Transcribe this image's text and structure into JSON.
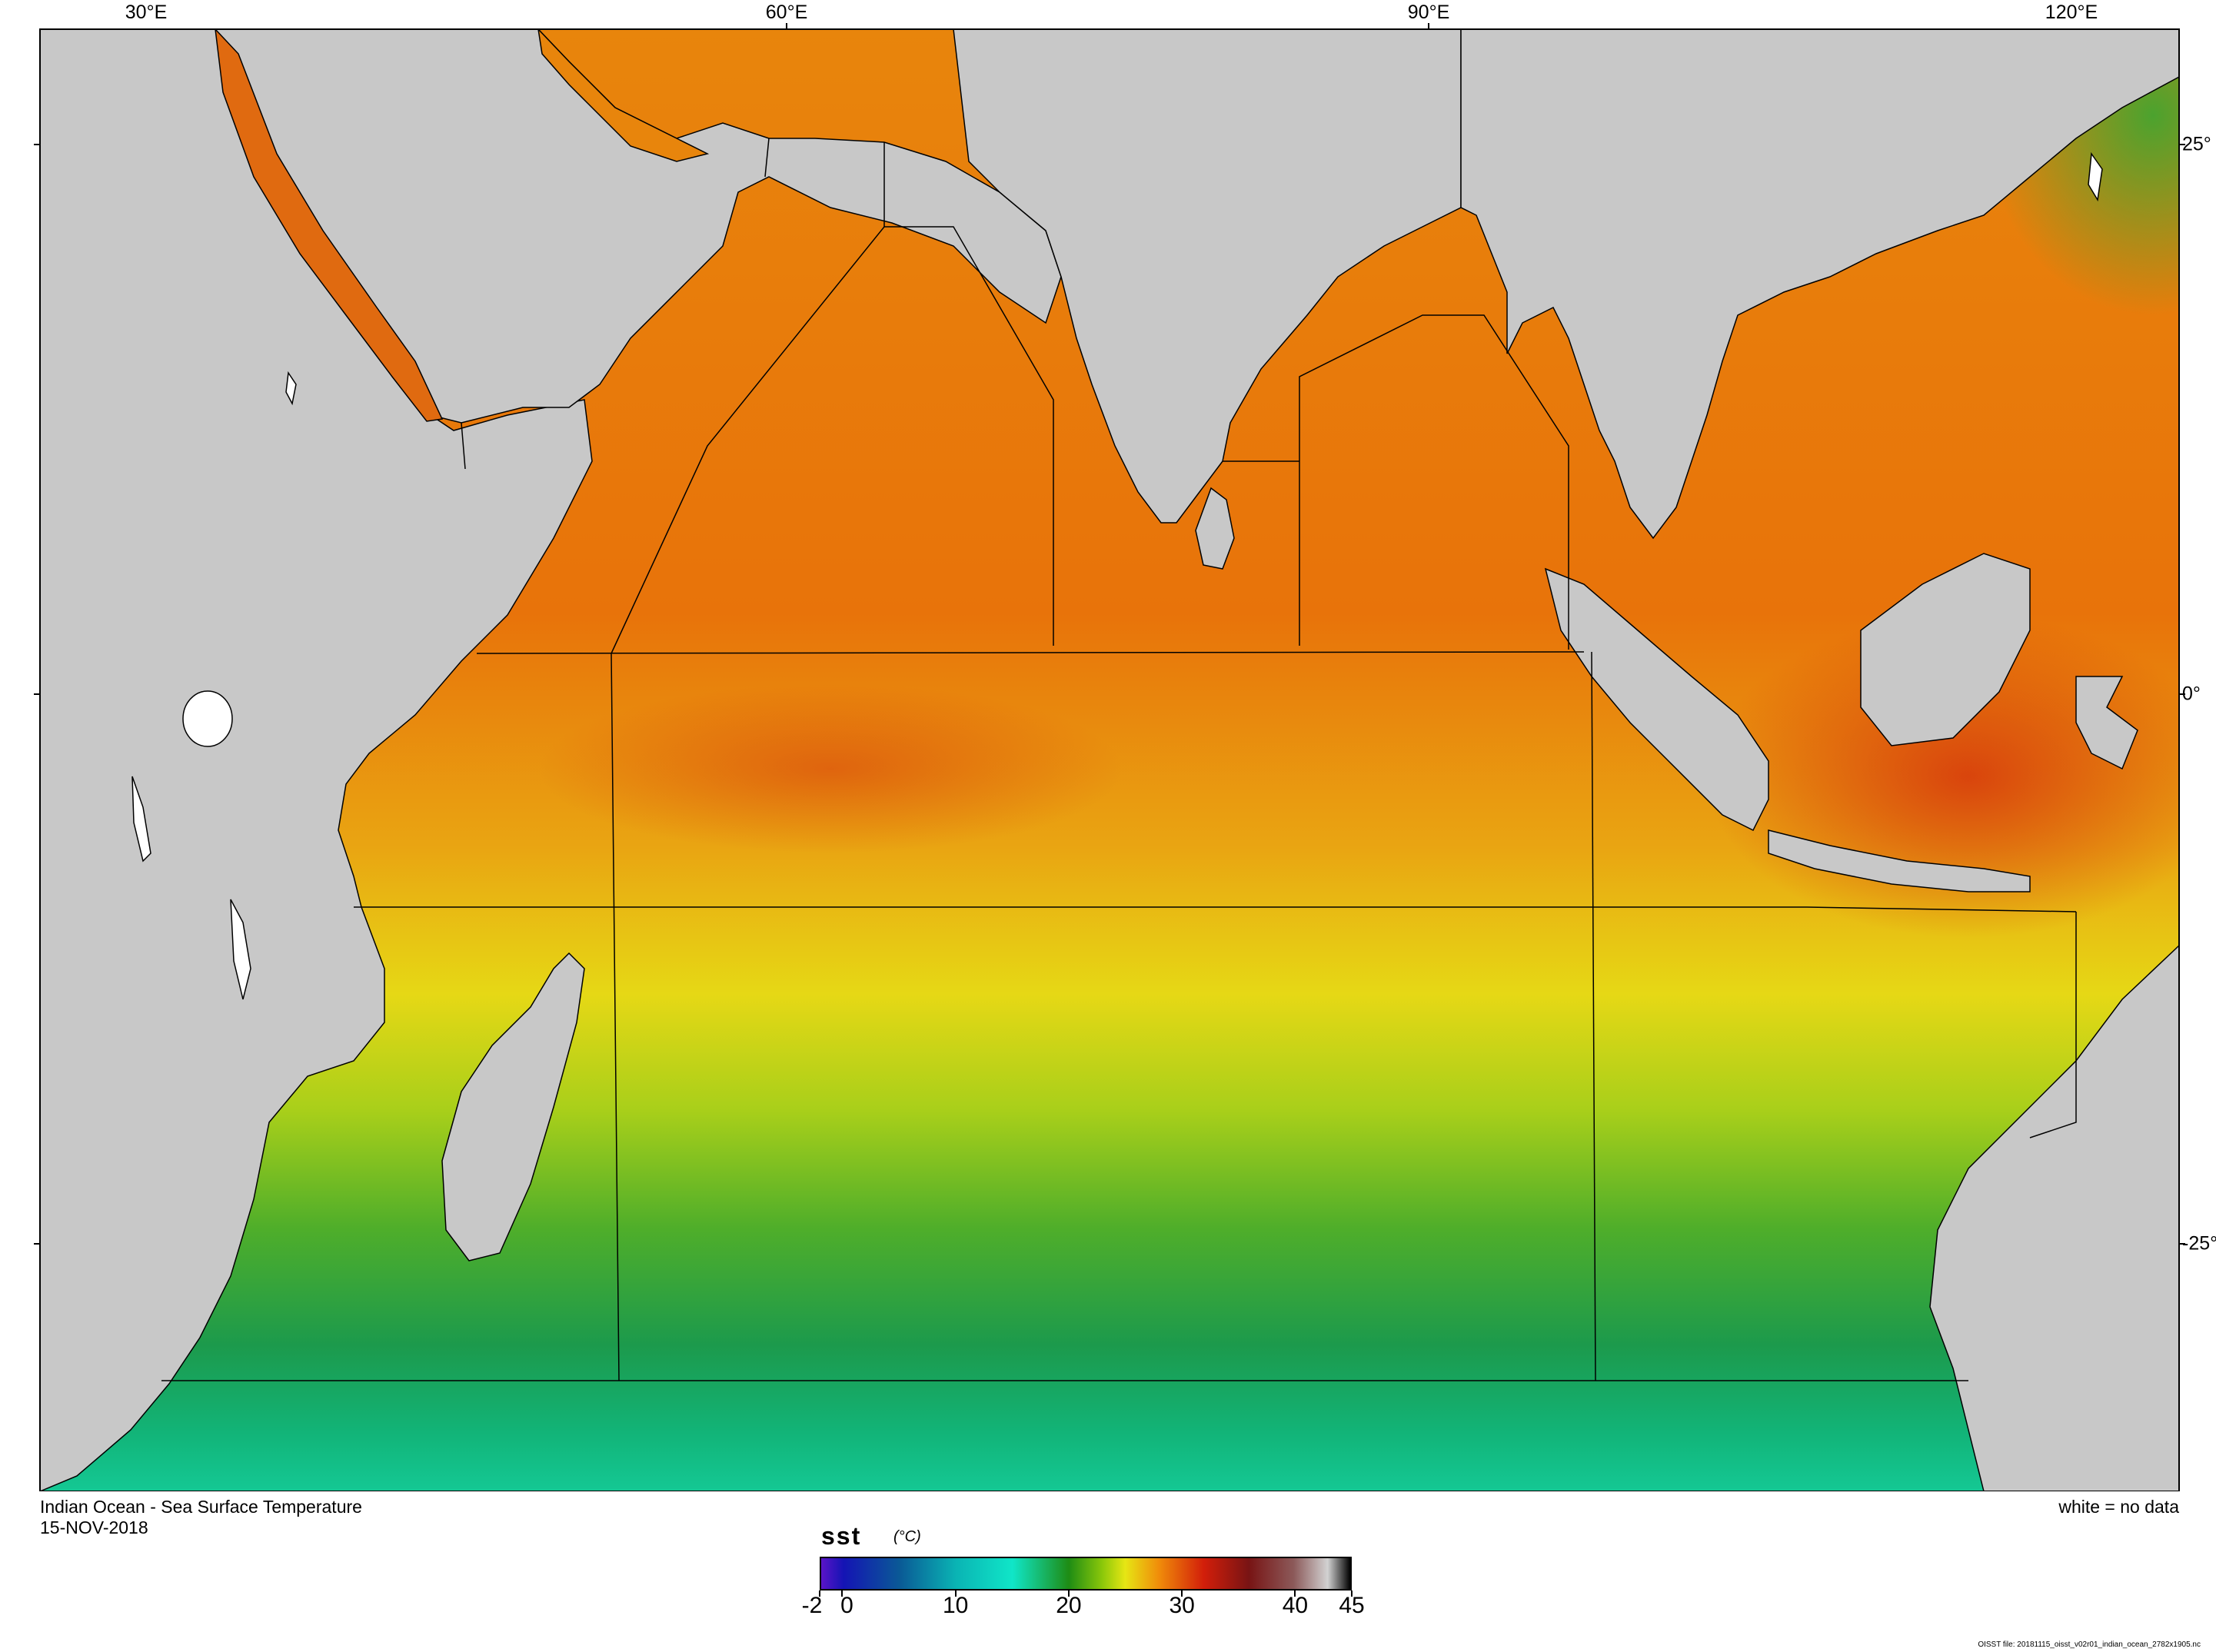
{
  "map": {
    "title": "Indian Ocean - Sea Surface Temperature",
    "date": "15-NOV-2018",
    "no_data_note": "white = no data",
    "footer": "OISST file: 20181115_oisst_v02r01_indian_ocean_2782x1905.nc",
    "lon_labels": [
      "30°E",
      "60°E",
      "90°E",
      "120°E"
    ],
    "lat_labels": [
      "25°",
      "0°",
      "-25°"
    ],
    "colors": {
      "land": "#c8c8c8",
      "no_data": "#ffffff",
      "grid_line": "#000000",
      "warm": "#e8730a",
      "hot": "#d83a10",
      "mild": "#e8d415",
      "cool": "#3aa632",
      "cold": "#10c890"
    }
  },
  "colorbar": {
    "variable": "sst",
    "units": "(°C)",
    "tick_labels": [
      "-2",
      "0",
      "10",
      "20",
      "30",
      "40",
      "45"
    ],
    "range": [
      -2,
      45
    ],
    "stops": [
      {
        "value": -2,
        "color": "#5a14c8"
      },
      {
        "value": 0,
        "color": "#1414b4"
      },
      {
        "value": 5,
        "color": "#0a5a96"
      },
      {
        "value": 10,
        "color": "#0ab4b4"
      },
      {
        "value": 15,
        "color": "#10e6c8"
      },
      {
        "value": 20,
        "color": "#1e8c14"
      },
      {
        "value": 23,
        "color": "#8cc80a"
      },
      {
        "value": 25,
        "color": "#e6e614"
      },
      {
        "value": 28,
        "color": "#f08c0a"
      },
      {
        "value": 32,
        "color": "#d21e0a"
      },
      {
        "value": 36,
        "color": "#781414"
      },
      {
        "value": 40,
        "color": "#8c5a5a"
      },
      {
        "value": 43,
        "color": "#d2d2d2"
      },
      {
        "value": 45,
        "color": "#000000"
      }
    ]
  }
}
